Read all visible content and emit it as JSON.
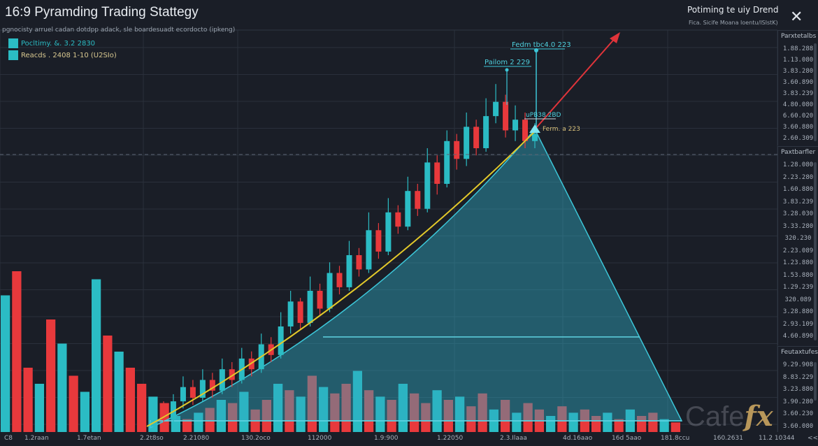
{
  "header": {
    "title": "16:9 Pyramding Trading Stattegy",
    "subtitle": "pgnocisty arruel cadan dotdpp adack, sle boardesuadt ecordocto (ipkeng)",
    "right_title": "Potiming te uiy Drend",
    "right_subtitle": "Fica. Sicife Moana Ioentu/ISIstK)",
    "close_icon": "close-icon"
  },
  "legend": [
    {
      "label": "Pocltimy. &. 3.2 2830",
      "color": "#2bbcc4"
    },
    {
      "label": "Reacds . 2408 1-10 (U2SIo)",
      "color": "#2bbcc4"
    }
  ],
  "panels": [
    {
      "title": "Parxtetalbs",
      "values": [
        "1.88.288",
        "1.13.080",
        "3.83.280",
        "3.60.890",
        "3.83.239",
        "4.80.080",
        "6.60.020",
        "3.60.880",
        "2.60.309"
      ]
    },
    {
      "title": "Paxtbarfler",
      "values": [
        "1.28.080",
        "2.23.280",
        "1.60.880",
        "3.83.239",
        "3.28.030",
        "3.33.280",
        "320.230",
        "2.23.089",
        "1.23.880",
        "1.53.880",
        "1.29.239",
        "320.089",
        "3.28.880",
        "2.93.109",
        "4.60.890"
      ]
    },
    {
      "title": "Feutaxtufes",
      "values": [
        "9.29.908",
        "8.83.229",
        "3.23.880",
        "3.90.280",
        "3.60.230",
        "3.60.080"
      ]
    }
  ],
  "annotations": {
    "top": "Fedm tbc4.0 223",
    "mid": "Pailom 2 229",
    "low": "uPB38.2BD",
    "apex": "Ferm. a 223"
  },
  "logo": {
    "text": "Cafe",
    "mark": "fx"
  },
  "colors": {
    "up": "#2bbcc4",
    "down": "#e8393c",
    "curve": "#e3c92a",
    "arrow": "#e0343a",
    "pyramid": "#2fa8c0"
  },
  "chart_data": {
    "type": "candlestick",
    "title": "16:9 Pyramding Trading Stattegy",
    "x_tick_labels": [
      "C8",
      "1.2raan",
      "1.7etan",
      "2.2t8so",
      "2.21080",
      "130.2oco",
      "112000",
      "1.9:900",
      "1.22050",
      "2.3.Ilaaa",
      "4d.16aao",
      "16d 5aao",
      "181.8ccu",
      "160.2631",
      "11.2 10344",
      "<<"
    ],
    "ohlc": [
      [
        2,
        6,
        8,
        1
      ],
      [
        6,
        4,
        9,
        2
      ],
      [
        4,
        9,
        11,
        3
      ],
      [
        9,
        13,
        16,
        7
      ],
      [
        13,
        10,
        15,
        8
      ],
      [
        10,
        15,
        18,
        9
      ],
      [
        15,
        12,
        17,
        10
      ],
      [
        12,
        18,
        21,
        11
      ],
      [
        18,
        15,
        20,
        13
      ],
      [
        15,
        21,
        24,
        14
      ],
      [
        21,
        18,
        23,
        16
      ],
      [
        18,
        25,
        28,
        17
      ],
      [
        25,
        22,
        27,
        20
      ],
      [
        22,
        30,
        34,
        21
      ],
      [
        30,
        37,
        40,
        28
      ],
      [
        37,
        31,
        38,
        29
      ],
      [
        31,
        40,
        44,
        30
      ],
      [
        40,
        35,
        42,
        33
      ],
      [
        35,
        45,
        48,
        34
      ],
      [
        45,
        41,
        47,
        39
      ],
      [
        41,
        50,
        54,
        40
      ],
      [
        50,
        46,
        52,
        44
      ],
      [
        46,
        57,
        62,
        45
      ],
      [
        57,
        51,
        59,
        49
      ],
      [
        51,
        62,
        66,
        50
      ],
      [
        62,
        58,
        64,
        56
      ],
      [
        58,
        68,
        72,
        57
      ],
      [
        68,
        63,
        70,
        61
      ],
      [
        63,
        76,
        80,
        62
      ],
      [
        76,
        70,
        78,
        67
      ],
      [
        70,
        82,
        85,
        69
      ],
      [
        82,
        77,
        84,
        74
      ],
      [
        77,
        86,
        90,
        75
      ],
      [
        86,
        80,
        88,
        78
      ],
      [
        80,
        89,
        94,
        79
      ],
      [
        89,
        93,
        98,
        87
      ],
      [
        93,
        85,
        95,
        83
      ],
      [
        85,
        88,
        92,
        82
      ],
      [
        88,
        82,
        90,
        80
      ],
      [
        82,
        84,
        87,
        80
      ]
    ],
    "volume": [
      [
        85,
        "u"
      ],
      [
        100,
        "d"
      ],
      [
        40,
        "d"
      ],
      [
        30,
        "u"
      ],
      [
        70,
        "d"
      ],
      [
        55,
        "u"
      ],
      [
        35,
        "d"
      ],
      [
        25,
        "u"
      ],
      [
        95,
        "u"
      ],
      [
        60,
        "d"
      ],
      [
        50,
        "u"
      ],
      [
        40,
        "d"
      ],
      [
        30,
        "d"
      ],
      [
        22,
        "u"
      ],
      [
        18,
        "d"
      ],
      [
        10,
        "u"
      ],
      [
        8,
        "d"
      ],
      [
        12,
        "u"
      ],
      [
        15,
        "d"
      ],
      [
        20,
        "u"
      ],
      [
        18,
        "d"
      ],
      [
        25,
        "u"
      ],
      [
        14,
        "d"
      ],
      [
        20,
        "d"
      ],
      [
        30,
        "u"
      ],
      [
        26,
        "d"
      ],
      [
        22,
        "u"
      ],
      [
        35,
        "d"
      ],
      [
        28,
        "u"
      ],
      [
        24,
        "d"
      ],
      [
        30,
        "d"
      ],
      [
        38,
        "u"
      ],
      [
        26,
        "d"
      ],
      [
        22,
        "u"
      ],
      [
        20,
        "d"
      ],
      [
        30,
        "u"
      ],
      [
        24,
        "d"
      ],
      [
        18,
        "d"
      ],
      [
        26,
        "u"
      ],
      [
        20,
        "d"
      ],
      [
        22,
        "u"
      ],
      [
        16,
        "d"
      ],
      [
        24,
        "d"
      ],
      [
        14,
        "u"
      ],
      [
        20,
        "d"
      ],
      [
        12,
        "u"
      ],
      [
        18,
        "d"
      ],
      [
        14,
        "d"
      ],
      [
        10,
        "u"
      ],
      [
        16,
        "d"
      ],
      [
        12,
        "u"
      ],
      [
        14,
        "d"
      ],
      [
        10,
        "d"
      ],
      [
        12,
        "u"
      ],
      [
        8,
        "d"
      ],
      [
        14,
        "u"
      ],
      [
        10,
        "d"
      ],
      [
        12,
        "d"
      ],
      [
        8,
        "u"
      ],
      [
        6,
        "d"
      ]
    ],
    "price_range": [
      0,
      100
    ],
    "grid": true
  }
}
